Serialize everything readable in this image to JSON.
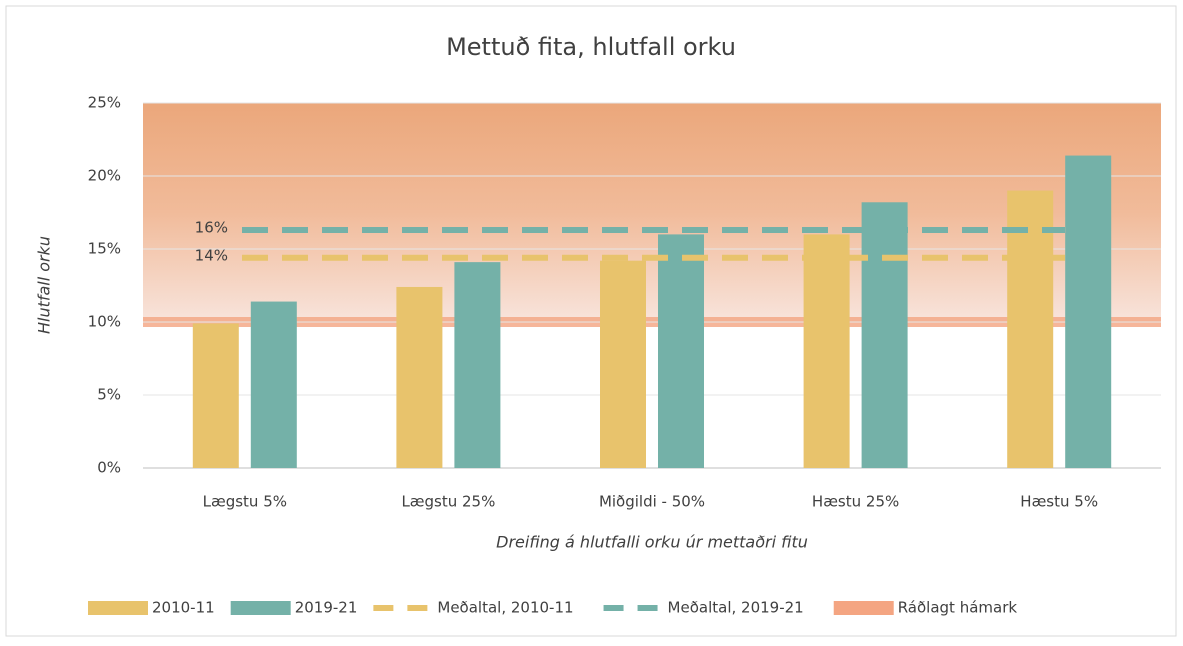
{
  "chart_data": {
    "type": "bar",
    "title": "Mettuð fita, hlutfall orku",
    "x_label": "Dreifing á hlutfalli orku úr mettaðri fitu",
    "y_label": "Hlutfall orku",
    "categories": [
      "Lægstu 5%",
      "Lægstu 25%",
      "Miðgildi - 50%",
      "Hæstu 25%",
      "Hæstu 5%"
    ],
    "series": [
      {
        "name": "2010-11",
        "color": "#e8c36c",
        "values": [
          9.9,
          12.4,
          14.2,
          16.0,
          19.0
        ]
      },
      {
        "name": "2019-21",
        "color": "#74b1a8",
        "values": [
          11.4,
          14.1,
          16.0,
          18.2,
          21.4
        ]
      }
    ],
    "mean_lines": [
      {
        "name": "Meðaltal, 2010-11",
        "color": "#e8c36c",
        "value": 14.4,
        "value_label": "14%"
      },
      {
        "name": "Meðaltal, 2019-21",
        "color": "#74b1a8",
        "value": 16.3,
        "value_label": "16%"
      }
    ],
    "limit": {
      "name": "Ráðlagt hámark",
      "value": 10,
      "color": "#f4a582"
    },
    "ylim": [
      0,
      25
    ],
    "yticks": [
      {
        "value": 0,
        "label": "0%"
      },
      {
        "value": 5,
        "label": "5%"
      },
      {
        "value": 10,
        "label": "10%"
      },
      {
        "value": 15,
        "label": "15%"
      },
      {
        "value": 20,
        "label": "20%"
      },
      {
        "value": 25,
        "label": "25%"
      }
    ],
    "grid": true,
    "legend": "bottom"
  }
}
